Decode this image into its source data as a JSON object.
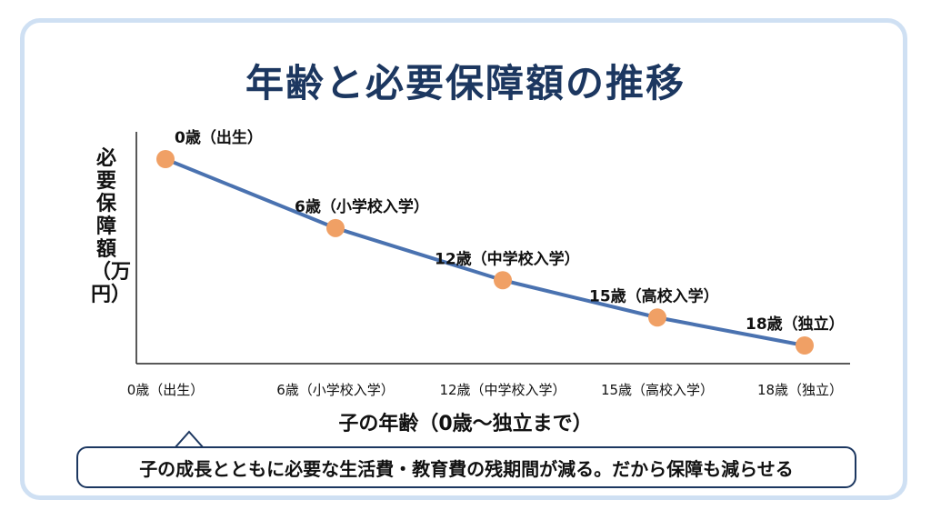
{
  "chart_data": {
    "type": "line",
    "title": "年齢と必要保障額の推移",
    "xlabel": "子の年齢（0歳〜独立まで）",
    "ylabel": "必要保障額（万円）",
    "categories": [
      "0歳（出生）",
      "6歳（小学校入学）",
      "12歳（中学校入学）",
      "15歳（高校入学）",
      "18歳（独立）"
    ],
    "point_labels": [
      "0歳（出生）",
      "6歳（小学校入学）",
      "12歳（中学校入学）",
      "15歳（高校入学）",
      "18歳（独立）"
    ],
    "values": [
      100,
      63,
      35,
      15,
      0
    ],
    "ylim": [
      0,
      100
    ],
    "grid": false,
    "line_color": "#4a72b0",
    "marker_color": "#f0a065"
  },
  "callout": {
    "text": "子の成長とともに必要な生活費・教育費の残期間が減る。だから保障も減らせる"
  },
  "colors": {
    "title": "#1c3760",
    "frame": "#cfe0f3"
  }
}
